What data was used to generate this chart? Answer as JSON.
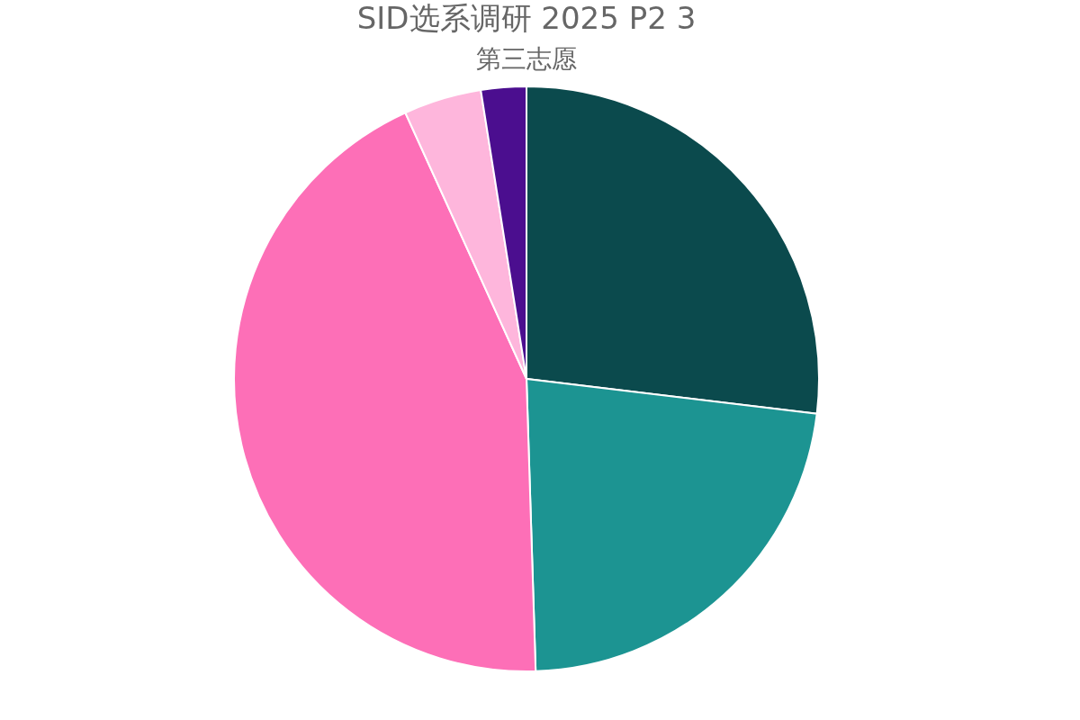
{
  "chart_data": {
    "type": "pie",
    "title": "SID选系调研 2025 P2 3",
    "subtitle": "第三志愿",
    "categories": [
      null,
      null,
      null,
      null,
      null
    ],
    "values": [
      26.9,
      22.6,
      43.7,
      4.3,
      2.5
    ],
    "colors": [
      "#0b4a4d",
      "#1c9492",
      "#fd6fb7",
      "#feb6dc",
      "#4b0e8f"
    ],
    "legend": false
  }
}
